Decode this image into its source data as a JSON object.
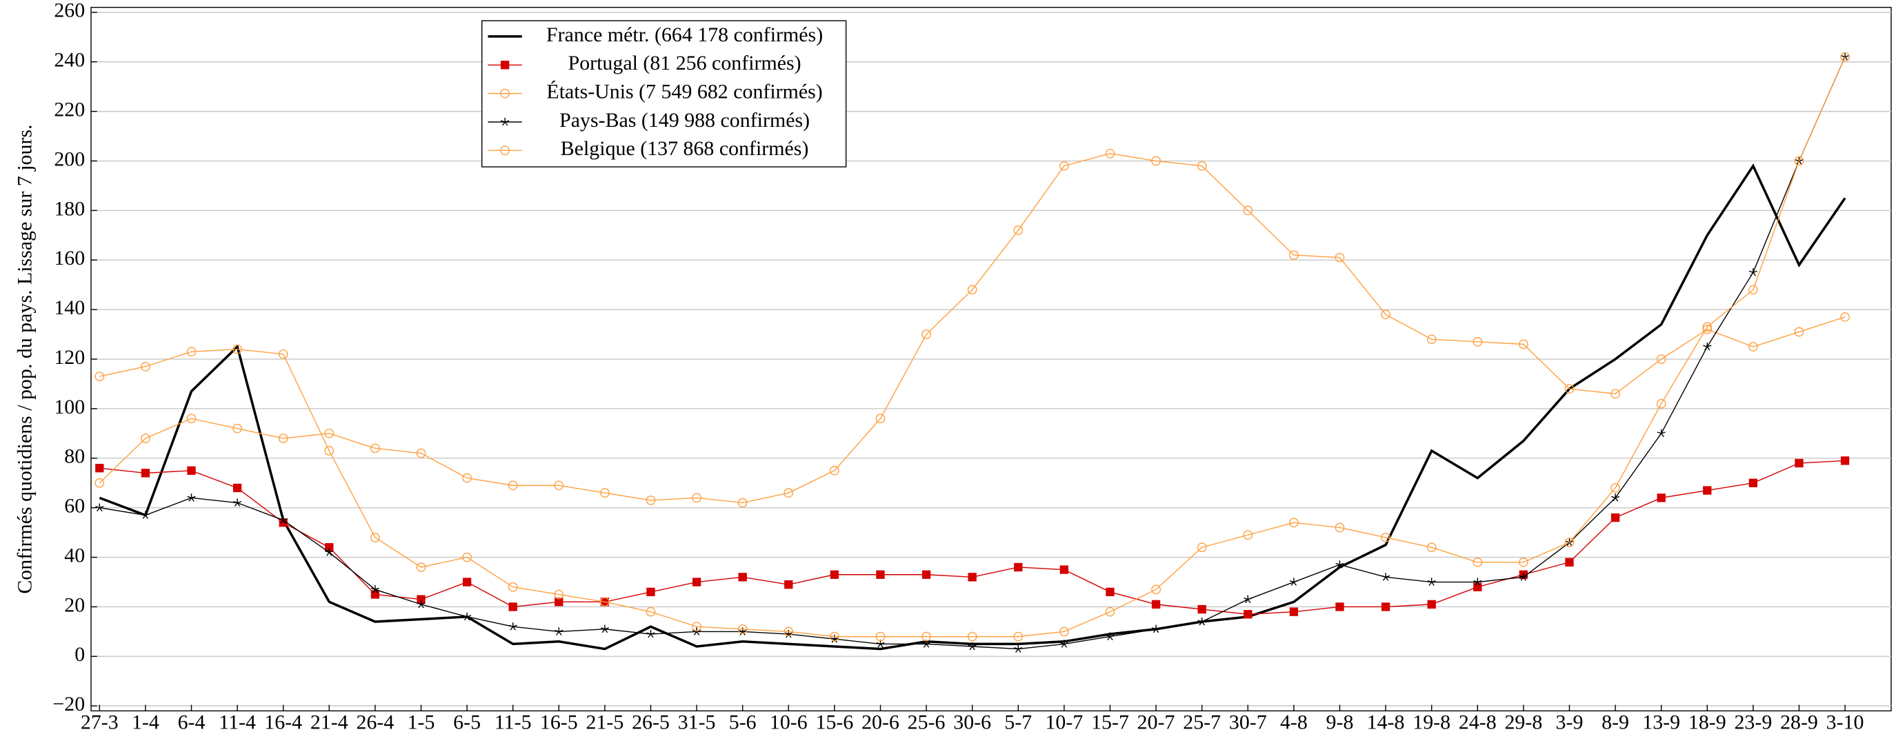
{
  "chart_data": {
    "type": "line",
    "y_label": "Confirmés quotidiens / pop. du pays. Lissage sur 7 jours.",
    "categories": [
      "27-3",
      "1-4",
      "6-4",
      "11-4",
      "16-4",
      "21-4",
      "26-4",
      "1-5",
      "6-5",
      "11-5",
      "16-5",
      "21-5",
      "26-5",
      "31-5",
      "5-6",
      "10-6",
      "15-6",
      "20-6",
      "25-6",
      "30-6",
      "5-7",
      "10-7",
      "15-7",
      "20-7",
      "25-7",
      "30-7",
      "4-8",
      "9-8",
      "14-8",
      "19-8",
      "24-8",
      "29-8",
      "3-9",
      "8-9",
      "13-9",
      "18-9",
      "23-9",
      "28-9",
      "3-10"
    ],
    "ylim": [
      -22,
      262
    ],
    "yticks": [
      {
        "value": -20,
        "label": "−20"
      },
      0,
      20,
      40,
      60,
      80,
      100,
      120,
      140,
      160,
      180,
      200,
      220,
      240,
      260
    ],
    "grid": true,
    "legend": "top-left",
    "series": [
      {
        "name": "France métr. (664 178 confirmés)",
        "color": "#000000",
        "marker": "none",
        "values": [
          64,
          57,
          107,
          125,
          55,
          22,
          14,
          15,
          16,
          5,
          6,
          3,
          12,
          4,
          6,
          5,
          4,
          3,
          6,
          5,
          5,
          6,
          9,
          11,
          14,
          16,
          22,
          36,
          45,
          83,
          72,
          87,
          108,
          120,
          134,
          170,
          198,
          158,
          185
        ]
      },
      {
        "name": "Portugal (81 256 confirmés)",
        "color": "#d40000",
        "marker": "square",
        "values": [
          76,
          74,
          75,
          68,
          54,
          44,
          25,
          23,
          30,
          20,
          22,
          22,
          26,
          30,
          32,
          29,
          33,
          33,
          33,
          32,
          36,
          35,
          26,
          21,
          19,
          17,
          18,
          20,
          20,
          21,
          28,
          33,
          38,
          56,
          64,
          67,
          70,
          78,
          79
        ]
      },
      {
        "name": "États-Unis (7 549 682 confirmés)",
        "color": "#ffa040",
        "marker": "circle",
        "values": [
          70,
          88,
          96,
          92,
          88,
          90,
          84,
          82,
          72,
          69,
          69,
          66,
          63,
          64,
          62,
          66,
          75,
          96,
          130,
          148,
          172,
          198,
          203,
          200,
          198,
          180,
          162,
          161,
          138,
          128,
          127,
          126,
          108,
          106,
          120,
          132,
          125,
          131,
          137
        ]
      },
      {
        "name": "Pays-Bas (149 988 confirmés)",
        "color": "#000000",
        "marker": "star",
        "values": [
          60,
          57,
          64,
          62,
          55,
          42,
          27,
          21,
          16,
          12,
          10,
          11,
          9,
          10,
          10,
          9,
          7,
          5,
          5,
          4,
          3,
          5,
          8,
          11,
          14,
          23,
          30,
          37,
          32,
          30,
          30,
          32,
          46,
          64,
          90,
          125,
          155,
          200,
          242
        ]
      },
      {
        "name": "Belgique (137 868 confirmés)",
        "color": "#ffa040",
        "marker": "circle",
        "values": [
          113,
          117,
          123,
          124,
          122,
          83,
          48,
          36,
          40,
          28,
          25,
          22,
          18,
          12,
          11,
          10,
          8,
          8,
          8,
          8,
          8,
          10,
          18,
          27,
          44,
          49,
          54,
          52,
          48,
          44,
          38,
          38,
          46,
          68,
          102,
          133,
          148,
          200,
          242
        ]
      }
    ]
  }
}
